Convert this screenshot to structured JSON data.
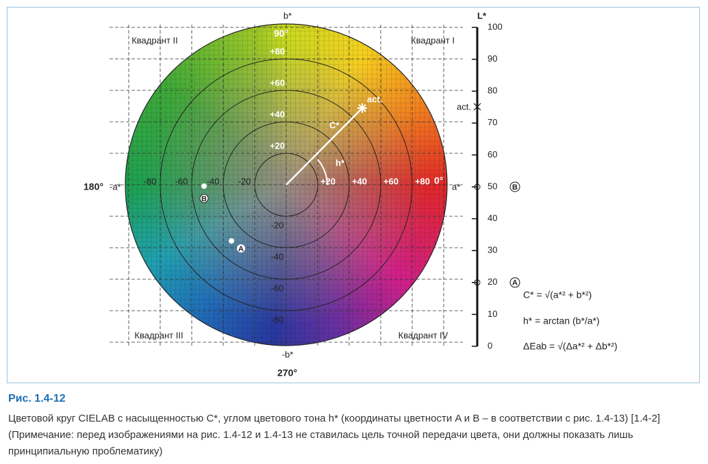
{
  "diagram": {
    "angles": {
      "top": "90°",
      "right": "0°",
      "left": "180°",
      "bottom": "270°"
    },
    "axes": {
      "b_plus": "b*",
      "b_minus": "-b*",
      "a_plus": "a*",
      "a_minus": "-a*"
    },
    "quadrants": [
      "Квадрант I",
      "Квадрант II",
      "Квадрант III",
      "Квадрант IV"
    ],
    "a_ticks": [
      "-80",
      "-60",
      "-40",
      "-20",
      "+20",
      "+40",
      "+60",
      "+80"
    ],
    "b_ticks": [
      "+80",
      "+60",
      "+40",
      "+20",
      "-20",
      "-40",
      "-60",
      "-80"
    ],
    "annotations": {
      "chroma": "C*",
      "hue": "h*",
      "actual": "act.",
      "point_a": "A",
      "point_b": "B"
    },
    "lightness": {
      "title": "L*",
      "ticks": [
        "100",
        "90",
        "80",
        "70",
        "60",
        "50",
        "40",
        "30",
        "20",
        "10",
        "0"
      ],
      "actual": "act.",
      "marker_b": "B",
      "marker_a": "A"
    },
    "formulas": [
      "C* = √(a*² + b*²)",
      "h* = arctan (b*/a*)",
      "ΔEab = √(Δa*² + Δb*²)"
    ]
  },
  "caption": {
    "title": "Рис. 1.4-12",
    "lines": [
      "Цветовой круг CIELAB с насыщенностью C*, углом цветового тона h* (координаты цветности A и B – в соответствии с рис. 1.4-13) [1.4-2]",
      "(Примечание: перед изображениями на рис. 1.4-12 и 1.4-13 не ставилась цель точной передачи цвета, они должны показать лишь",
      "принципиальную проблематику)"
    ]
  }
}
